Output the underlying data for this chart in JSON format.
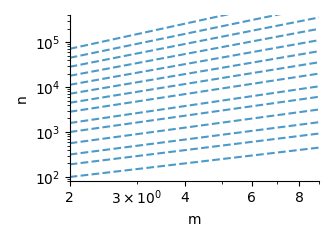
{
  "title": "",
  "xlabel": "m",
  "ylabel": "n",
  "xlim": [
    2,
    9.0
  ],
  "ylim": [
    80,
    400000.0
  ],
  "x_ticks": [
    2,
    4,
    6,
    8
  ],
  "line_color": "#4C9AC9",
  "line_style": "--",
  "line_width": 1.5,
  "m_start": 2,
  "m_end": 9.0,
  "num_points": 100,
  "lines": [
    {
      "log_n_at_m2": 2.0,
      "slope": 1.0
    },
    {
      "log_n_at_m2": 2.28,
      "slope": 1.05
    },
    {
      "log_n_at_m2": 2.5,
      "slope": 1.1
    },
    {
      "log_n_at_m2": 2.75,
      "slope": 1.15
    },
    {
      "log_n_at_m2": 3.0,
      "slope": 1.2
    },
    {
      "log_n_at_m2": 3.2,
      "slope": 1.25
    },
    {
      "log_n_at_m2": 3.45,
      "slope": 1.3
    },
    {
      "log_n_at_m2": 3.65,
      "slope": 1.38
    },
    {
      "log_n_at_m2": 3.85,
      "slope": 1.45
    },
    {
      "log_n_at_m2": 4.05,
      "slope": 1.52
    },
    {
      "log_n_at_m2": 4.25,
      "slope": 1.6
    },
    {
      "log_n_at_m2": 4.45,
      "slope": 1.68
    },
    {
      "log_n_at_m2": 4.65,
      "slope": 1.76
    },
    {
      "log_n_at_m2": 4.85,
      "slope": 1.85
    }
  ]
}
